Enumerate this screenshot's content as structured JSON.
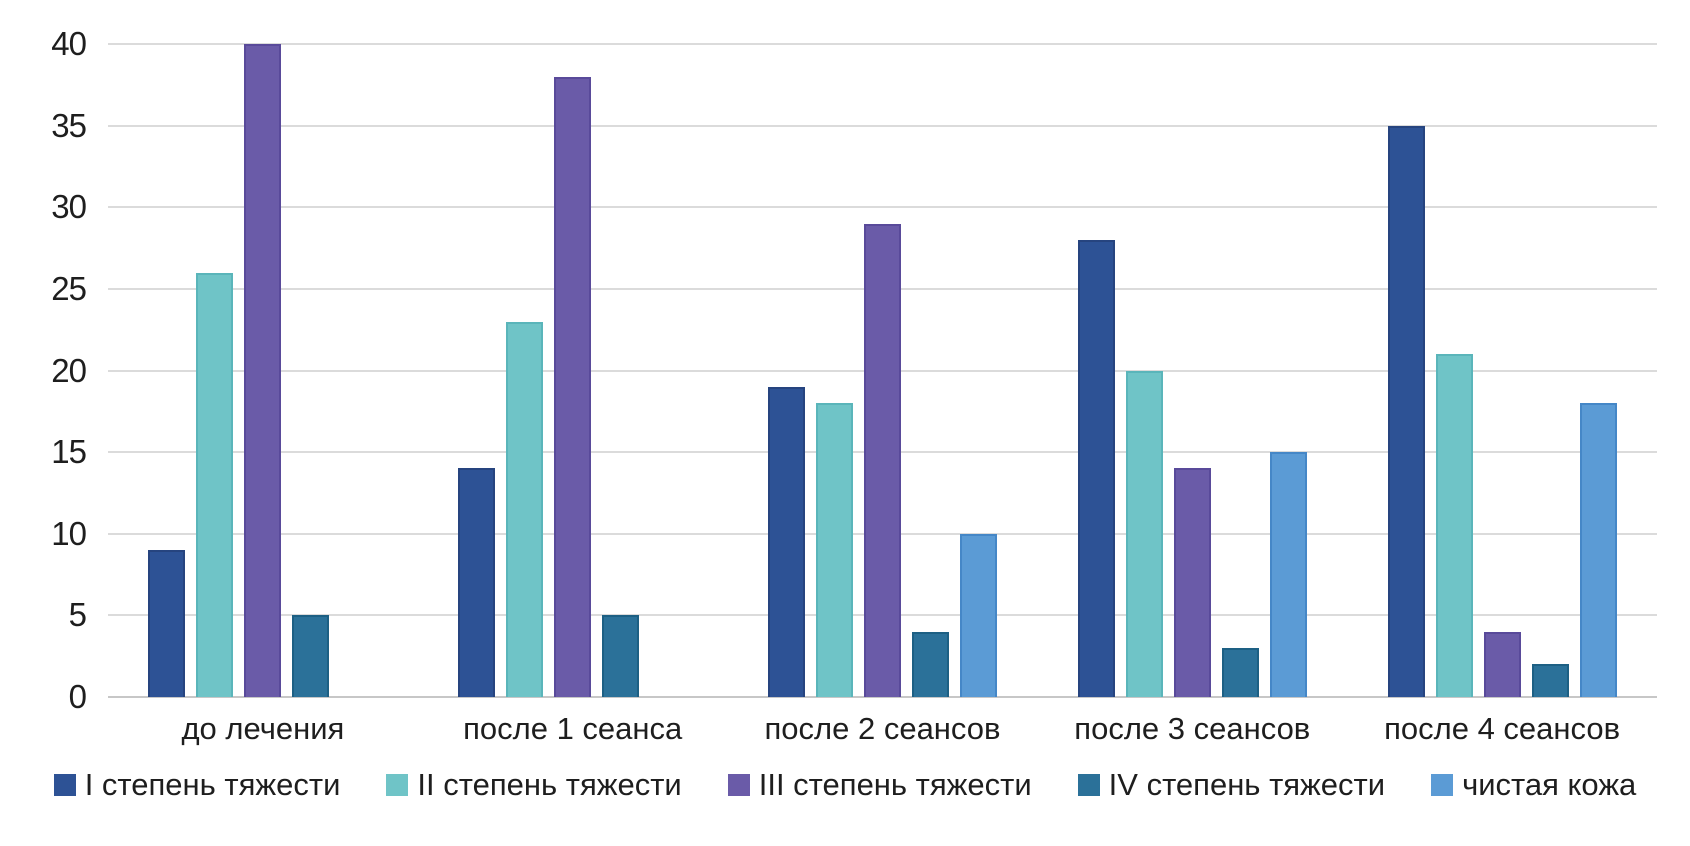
{
  "chart_data": {
    "type": "bar",
    "title": "",
    "categories": [
      "до лечения",
      "после 1 сеанса",
      "после 2 сеансов",
      "после 3 сеансов",
      "после 4 сеансов"
    ],
    "series": [
      {
        "name": "I степень тяжести",
        "color": "#2D5295",
        "border_color": "#26447F",
        "values": [
          9,
          14,
          19,
          28,
          35
        ]
      },
      {
        "name": "II степень тяжести",
        "color": "#6FC4C7",
        "border_color": "#5AB5BA",
        "values": [
          26,
          23,
          18,
          20,
          21
        ]
      },
      {
        "name": "III степень тяжести",
        "color": "#6A5BA8",
        "border_color": "#594A9A",
        "values": [
          40,
          38,
          29,
          14,
          4
        ]
      },
      {
        "name": "IV степень тяжести",
        "color": "#2B7199",
        "border_color": "#1D6084",
        "values": [
          5,
          5,
          4,
          3,
          2
        ]
      },
      {
        "name": "чистая кожа",
        "color": "#5B9BD5",
        "border_color": "#4587C7",
        "values": [
          0,
          0,
          10,
          15,
          18
        ]
      }
    ],
    "xlabel": "",
    "ylabel": "",
    "ylim": [
      0,
      40
    ],
    "yticks": [
      0,
      5,
      10,
      15,
      20,
      25,
      30,
      35,
      40
    ],
    "grid": true,
    "grid_color": "#DBDBDB",
    "baseline_color": "#C7C7C7",
    "background_color": "#FFFFFF",
    "text_color": "#1E1E1E",
    "legend_position": "bottom"
  }
}
